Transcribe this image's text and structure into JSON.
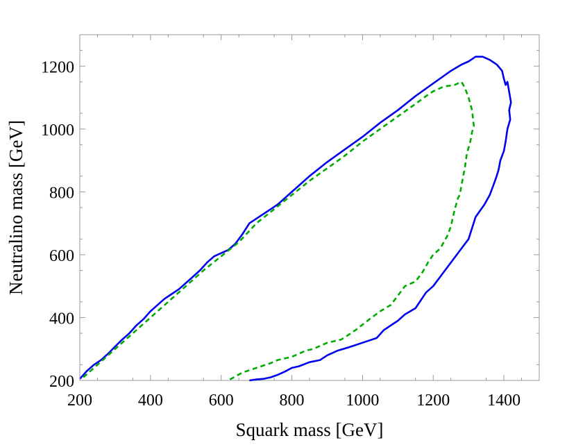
{
  "chart_data": {
    "type": "line",
    "title": "",
    "xlabel": "Squark  mass [GeV]",
    "ylabel": "Neutralino mass [GeV]",
    "xlim": [
      200,
      1500
    ],
    "ylim": [
      200,
      1300
    ],
    "xticks": [
      200,
      400,
      600,
      800,
      1000,
      1200,
      1400
    ],
    "yticks": [
      200,
      400,
      600,
      800,
      1000,
      1200
    ],
    "xticklabels": [
      "200",
      "400",
      "600",
      "800",
      "1000",
      "1200",
      "1400"
    ],
    "yticklabels": [
      "200",
      "400",
      "600",
      "800",
      "1000",
      "1200"
    ],
    "grid": false,
    "legend": "none",
    "series": [
      {
        "color": "#0000ee",
        "style": "solid",
        "x": [
          200,
          220,
          240,
          260,
          280,
          300,
          320,
          340,
          360,
          380,
          400,
          420,
          440,
          460,
          480,
          500,
          520,
          540,
          560,
          580,
          600,
          620,
          640,
          660,
          680,
          700,
          720,
          740,
          760,
          780,
          800,
          850,
          900,
          950,
          1000,
          1050,
          1100,
          1150,
          1200,
          1250,
          1280,
          1300,
          1320,
          1340,
          1360,
          1380,
          1395,
          1400,
          1405,
          1410,
          1420,
          1415,
          1418,
          1410,
          1405,
          1400,
          1390,
          1385,
          1378,
          1370,
          1360,
          1345,
          1320,
          1300,
          1270,
          1240,
          1220,
          1200,
          1180,
          1150,
          1120,
          1100,
          1060,
          1040,
          1000,
          960,
          930,
          900,
          880,
          850,
          820,
          800,
          780,
          760,
          740,
          720,
          700,
          680
        ],
        "y": [
          205,
          230,
          250,
          265,
          285,
          308,
          330,
          350,
          375,
          395,
          420,
          440,
          460,
          475,
          490,
          510,
          530,
          550,
          575,
          595,
          605,
          615,
          635,
          665,
          700,
          715,
          730,
          745,
          760,
          780,
          800,
          850,
          895,
          935,
          975,
          1020,
          1060,
          1105,
          1145,
          1185,
          1205,
          1215,
          1230,
          1230,
          1220,
          1205,
          1185,
          1160,
          1140,
          1150,
          1085,
          1060,
          1030,
          1000,
          960,
          930,
          900,
          870,
          845,
          820,
          790,
          760,
          720,
          650,
          605,
          560,
          530,
          500,
          480,
          430,
          410,
          390,
          360,
          335,
          320,
          305,
          295,
          280,
          265,
          258,
          245,
          240,
          228,
          218,
          210,
          205,
          203,
          200
        ]
      },
      {
        "color": "#00aa00",
        "style": "dashed",
        "x": [
          210,
          250,
          300,
          350,
          400,
          450,
          500,
          550,
          600,
          650,
          700,
          750,
          800,
          850,
          900,
          950,
          1000,
          1050,
          1100,
          1150,
          1180,
          1200,
          1230,
          1260,
          1280,
          1290,
          1300,
          1310,
          1315,
          1310,
          1305,
          1295,
          1290,
          1285,
          1280,
          1275,
          1270,
          1265,
          1260,
          1250,
          1240,
          1230,
          1220,
          1200,
          1185,
          1170,
          1150,
          1120,
          1100,
          1080,
          1050,
          1020,
          980,
          960,
          940,
          900,
          880,
          860,
          840,
          800,
          760,
          740,
          700,
          660,
          620
        ],
        "y": [
          210,
          250,
          300,
          350,
          400,
          450,
          500,
          550,
          595,
          640,
          700,
          745,
          790,
          835,
          875,
          915,
          960,
          1000,
          1040,
          1080,
          1105,
          1120,
          1135,
          1140,
          1150,
          1130,
          1100,
          1060,
          1010,
          990,
          960,
          920,
          880,
          850,
          820,
          790,
          780,
          760,
          740,
          690,
          660,
          640,
          620,
          600,
          575,
          545,
          515,
          500,
          470,
          440,
          420,
          395,
          360,
          345,
          330,
          320,
          310,
          300,
          295,
          275,
          265,
          255,
          240,
          225,
          200
        ]
      }
    ]
  }
}
